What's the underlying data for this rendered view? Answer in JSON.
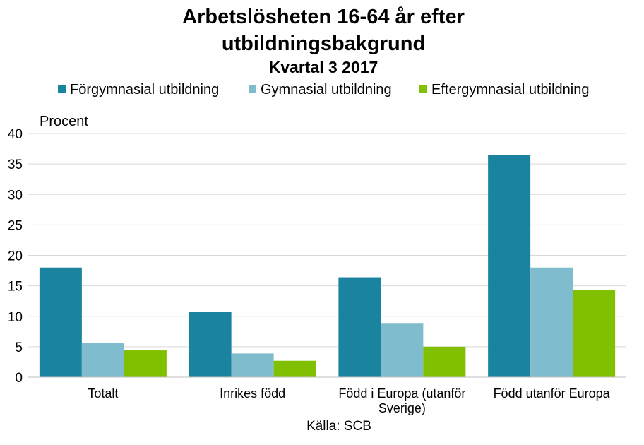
{
  "chart_data": {
    "type": "bar",
    "title": "Arbetslösheten 16-64 år efter utbildningsbakgrund",
    "title_lines": [
      "Arbetslösheten 16-64 år efter",
      "utbildningsbakgrund"
    ],
    "subtitle": "Kvartal 3 2017",
    "ylabel": "Procent",
    "xlabel": "",
    "source": "Källa: SCB",
    "ylim": [
      0,
      40
    ],
    "yticks": [
      0,
      5,
      10,
      15,
      20,
      25,
      30,
      35,
      40
    ],
    "grid": true,
    "legend_position": "top",
    "categories": [
      "Totalt",
      "Inrikes född",
      "Född i Europa (utanför Sverige)",
      "Född utanför Europa"
    ],
    "category_lines": [
      [
        "Totalt"
      ],
      [
        "Inrikes född"
      ],
      [
        "Född i Europa (utanför",
        "Sverige)"
      ],
      [
        "Född utanför Europa"
      ]
    ],
    "series": [
      {
        "name": "Förgymnasial utbildning",
        "color": "#1a84a0",
        "values": [
          18.0,
          10.7,
          16.4,
          36.5
        ]
      },
      {
        "name": "Gymnasial utbildning",
        "color": "#7fbccd",
        "values": [
          5.6,
          3.9,
          8.9,
          18.0
        ]
      },
      {
        "name": "Eftergymnasial utbildning",
        "color": "#80c000",
        "values": [
          4.4,
          2.7,
          5.0,
          14.3
        ]
      }
    ]
  }
}
